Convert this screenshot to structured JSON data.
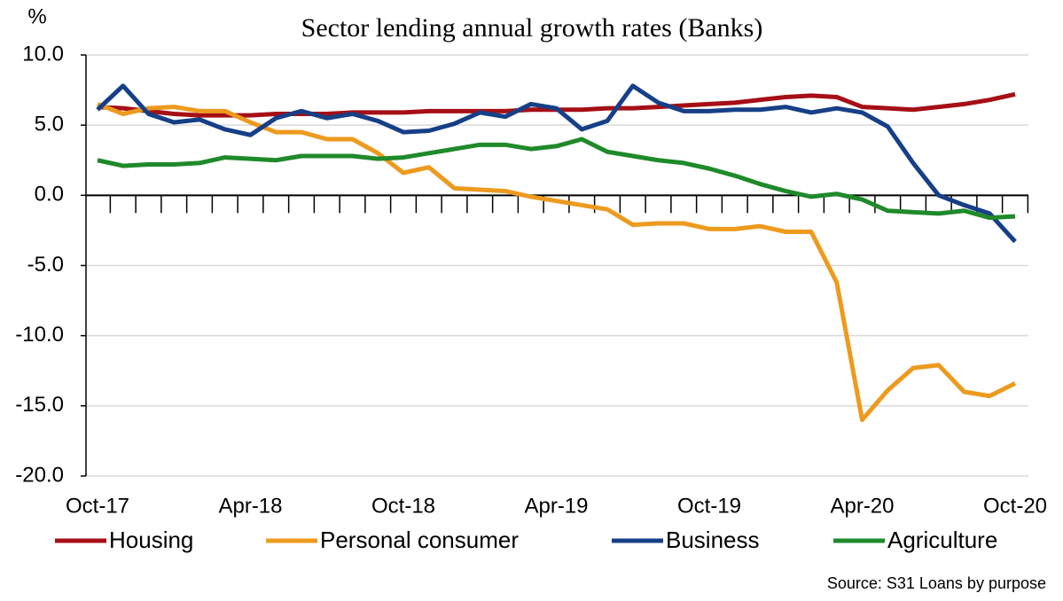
{
  "chart_data": {
    "type": "line",
    "title": "Sector lending annual growth rates (Banks)",
    "y_label": "%",
    "source": "Source: S31 Loans by purpose",
    "categories": [
      "Oct-17",
      null,
      null,
      null,
      null,
      null,
      "Apr-18",
      null,
      null,
      null,
      null,
      null,
      "Oct-18",
      null,
      null,
      null,
      null,
      null,
      "Apr-19",
      null,
      null,
      null,
      null,
      null,
      "Oct-19",
      null,
      null,
      null,
      null,
      null,
      "Apr-20",
      null,
      null,
      null,
      null,
      null,
      "Oct-20"
    ],
    "series": [
      {
        "name": "Housing",
        "color": "#a50f15",
        "values": [
          6.3,
          6.2,
          6.0,
          5.8,
          5.7,
          5.7,
          5.7,
          5.8,
          5.8,
          5.8,
          5.9,
          5.9,
          5.9,
          6.0,
          6.0,
          6.0,
          6.0,
          6.1,
          6.1,
          6.1,
          6.2,
          6.2,
          6.3,
          6.4,
          6.5,
          6.6,
          6.8,
          7.0,
          7.1,
          7.0,
          6.3,
          6.2,
          6.1,
          6.3,
          6.5,
          6.8,
          7.2
        ]
      },
      {
        "name": "Personal consumer",
        "color": "#ed9a1e",
        "values": [
          6.5,
          5.8,
          6.2,
          6.3,
          6.0,
          6.0,
          5.2,
          4.5,
          4.5,
          4.0,
          4.0,
          3.0,
          1.6,
          2.0,
          0.5,
          0.4,
          0.3,
          -0.1,
          -0.4,
          -0.7,
          -1.0,
          -2.1,
          -2.0,
          -2.0,
          -2.4,
          -2.4,
          -2.2,
          -2.6,
          -2.6,
          -6.2,
          -16.0,
          -13.9,
          -12.3,
          -12.1,
          -14.0,
          -14.3,
          -13.4
        ]
      },
      {
        "name": "Business",
        "color": "#163f87",
        "values": [
          6.1,
          7.8,
          5.8,
          5.2,
          5.4,
          4.7,
          4.3,
          5.5,
          6.0,
          5.5,
          5.8,
          5.3,
          4.5,
          4.6,
          5.1,
          5.9,
          5.6,
          6.5,
          6.2,
          4.7,
          5.3,
          7.8,
          6.6,
          6.0,
          6.0,
          6.1,
          6.1,
          6.3,
          5.9,
          6.2,
          5.9,
          4.9,
          2.3,
          0.0,
          -0.7,
          -1.3,
          -3.3
        ]
      },
      {
        "name": "Agriculture",
        "color": "#1f8a2a",
        "values": [
          2.5,
          2.1,
          2.2,
          2.2,
          2.3,
          2.7,
          2.6,
          2.5,
          2.8,
          2.8,
          2.8,
          2.6,
          2.7,
          3.0,
          3.3,
          3.6,
          3.6,
          3.3,
          3.5,
          4.0,
          3.1,
          2.8,
          2.5,
          2.3,
          1.9,
          1.4,
          0.8,
          0.3,
          -0.1,
          0.1,
          -0.3,
          -1.1,
          -1.2,
          -1.3,
          -1.1,
          -1.6,
          -1.5
        ]
      }
    ],
    "ylim": [
      -20,
      10
    ],
    "yticks": [
      {
        "value": -20,
        "label": "-20.0"
      },
      {
        "value": -15,
        "label": "-15.0"
      },
      {
        "value": -10,
        "label": "-10.0"
      },
      {
        "value": -5,
        "label": "-5.0"
      },
      {
        "value": 0,
        "label": "0.0"
      },
      {
        "value": 5,
        "label": "5.0"
      },
      {
        "value": 10,
        "label": "10.0"
      }
    ],
    "grid": true,
    "legend": "bottom"
  }
}
